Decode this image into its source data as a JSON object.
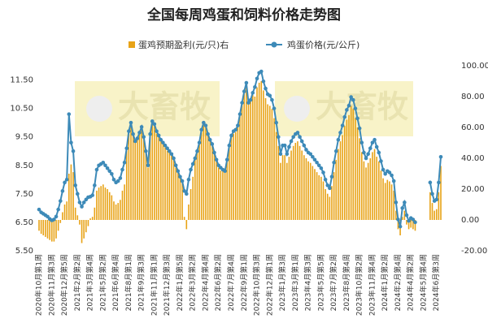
{
  "chart_data": {
    "type": "bar-line",
    "title": "全国每周鸡蛋和饲料价格走势图",
    "watermark": "大畜牧",
    "categories": [
      "2020年10月第1周",
      null,
      null,
      null,
      null,
      null,
      "2020年11月第3周",
      null,
      null,
      null,
      null,
      null,
      "2020年12月第5周",
      null,
      null,
      null,
      null,
      null,
      "2021年2月第2周",
      null,
      null,
      null,
      null,
      null,
      "2021年3月第4周",
      null,
      null,
      null,
      null,
      null,
      "2021年5月第2周",
      null,
      null,
      null,
      null,
      null,
      "2021年6月第4周",
      null,
      null,
      null,
      null,
      null,
      "2021年8月第1周",
      null,
      null,
      null,
      null,
      null,
      "2021年9月第3周",
      null,
      null,
      null,
      null,
      null,
      "2021年11月第1周",
      null,
      null,
      null,
      null,
      null,
      "2021年12月第3周",
      null,
      null,
      null,
      null,
      null,
      "2022年1月第5周",
      null,
      null,
      null,
      null,
      null,
      "2022年3月第2周",
      null,
      null,
      null,
      null,
      null,
      "2022年4月第4周",
      null,
      null,
      null,
      null,
      null,
      "2022年6月第2周",
      null,
      null,
      null,
      null,
      null,
      "2022年7月第4周",
      null,
      null,
      null,
      null,
      null,
      "2022年9月第1周",
      null,
      null,
      null,
      null,
      null,
      "2022年10月第3周",
      null,
      null,
      null,
      null,
      null,
      "2022年12月第1周",
      null,
      null,
      null,
      null,
      null,
      "2023年1月第3周",
      null,
      null,
      null,
      null,
      null,
      "2023年3月第1周",
      null,
      null,
      null,
      null,
      null,
      "2023年4月第3周",
      null,
      null,
      null,
      null,
      null,
      "2023年5月第5周",
      null,
      null,
      null,
      null,
      null,
      "2023年7月第2周",
      null,
      null,
      null,
      null,
      null,
      "2023年8月第4周",
      null,
      null,
      null,
      null,
      null,
      "2023年10月第2周",
      null,
      null,
      null,
      null,
      null,
      "2023年11月第4周",
      null,
      null,
      null,
      null,
      null,
      "2024年1月第2周",
      null,
      null,
      null,
      null,
      null,
      "2024年2月第4周",
      null,
      null,
      null,
      null,
      null,
      "2024年4月第2周",
      null,
      null,
      null,
      null,
      null,
      "2024年5月第4周",
      null,
      null,
      null,
      null,
      null,
      "2024年6月第3周",
      null,
      null
    ],
    "series": [
      {
        "name": "蛋鸡预期盈利(元/只)右",
        "kind": "bar",
        "axis": "y2",
        "color": "#e8a317",
        "values": [
          -7,
          -9,
          -10,
          -11,
          -12,
          -13,
          -14,
          -14,
          -12,
          -7,
          -2,
          5,
          10,
          12,
          30,
          36,
          31,
          8,
          3,
          -3,
          -15,
          -12,
          -8,
          -4,
          1,
          2,
          8,
          19,
          21,
          22,
          23,
          21,
          20,
          18,
          16,
          12,
          10,
          11,
          13,
          19,
          23,
          45,
          56,
          62,
          55,
          50,
          52,
          56,
          59,
          53,
          44,
          34,
          55,
          63,
          61,
          56,
          54,
          51,
          49,
          47,
          45,
          44,
          42,
          39,
          34,
          31,
          27,
          24,
          2,
          -6,
          10,
          20,
          28,
          39,
          44,
          49,
          57,
          62,
          60,
          55,
          51,
          48,
          43,
          38,
          34,
          32,
          32,
          31,
          38,
          47,
          54,
          56,
          57,
          60,
          68,
          75,
          82,
          88,
          75,
          77,
          81,
          80,
          86,
          89,
          90,
          84,
          79,
          75,
          74,
          72,
          66,
          57,
          48,
          37,
          42,
          42,
          37,
          41,
          45,
          48,
          50,
          51,
          48,
          45,
          42,
          40,
          38,
          37,
          35,
          33,
          31,
          29,
          28,
          25,
          20,
          17,
          15,
          22,
          31,
          39,
          46,
          51,
          55,
          61,
          65,
          68,
          74,
          72,
          66,
          60,
          53,
          44,
          38,
          34,
          37,
          40,
          44,
          46,
          41,
          38,
          32,
          27,
          24,
          26,
          25,
          23,
          19,
          6,
          -6,
          -10,
          2,
          6,
          -3,
          -6,
          -5,
          -6,
          -7,
          null,
          null,
          null,
          null,
          null,
          null,
          18,
          11,
          6,
          7,
          18,
          35
        ]
      },
      {
        "name": "鸡蛋价格(元/公斤)",
        "kind": "line",
        "axis": "y",
        "color": "#3d8ab8",
        "values": [
          6.95,
          6.85,
          6.8,
          6.75,
          6.7,
          6.62,
          6.57,
          6.6,
          6.7,
          6.95,
          7.25,
          7.6,
          7.9,
          8.0,
          10.3,
          9.3,
          9.0,
          7.8,
          7.5,
          7.2,
          7.05,
          7.2,
          7.3,
          7.38,
          7.4,
          7.45,
          7.8,
          8.35,
          8.5,
          8.55,
          8.6,
          8.5,
          8.4,
          8.3,
          8.2,
          8.0,
          7.9,
          7.95,
          8.05,
          8.35,
          8.6,
          9.1,
          9.7,
          10.0,
          9.6,
          9.35,
          9.45,
          9.65,
          9.85,
          9.5,
          9.0,
          8.5,
          9.6,
          10.05,
          9.95,
          9.7,
          9.55,
          9.4,
          9.3,
          9.2,
          9.1,
          9.0,
          8.9,
          8.75,
          8.5,
          8.3,
          8.1,
          7.95,
          7.6,
          7.5,
          8.0,
          8.35,
          8.55,
          8.75,
          9.0,
          9.3,
          9.75,
          10.0,
          9.9,
          9.6,
          9.4,
          9.25,
          8.95,
          8.7,
          8.5,
          8.42,
          8.35,
          8.3,
          8.7,
          9.2,
          9.55,
          9.7,
          9.75,
          9.9,
          10.3,
          10.7,
          11.1,
          11.4,
          10.7,
          10.8,
          11.05,
          11.25,
          11.55,
          11.75,
          11.8,
          11.45,
          11.2,
          11.0,
          10.95,
          10.8,
          10.5,
          10.0,
          9.5,
          8.9,
          9.2,
          9.2,
          8.9,
          9.15,
          9.35,
          9.5,
          9.6,
          9.65,
          9.5,
          9.35,
          9.2,
          9.05,
          8.95,
          8.9,
          8.8,
          8.7,
          8.6,
          8.5,
          8.4,
          8.25,
          8.0,
          7.8,
          7.7,
          8.1,
          8.6,
          9.0,
          9.4,
          9.65,
          9.9,
          10.2,
          10.45,
          10.6,
          10.9,
          10.8,
          10.5,
          10.15,
          9.8,
          9.3,
          8.95,
          8.75,
          8.9,
          9.1,
          9.3,
          9.4,
          9.15,
          8.95,
          8.65,
          8.35,
          8.2,
          8.3,
          8.25,
          8.15,
          7.95,
          7.2,
          6.6,
          6.35,
          7.0,
          7.2,
          6.75,
          6.55,
          6.65,
          6.6,
          6.5,
          null,
          null,
          null,
          null,
          null,
          null,
          7.9,
          7.5,
          7.25,
          7.3,
          7.9,
          8.8
        ]
      }
    ],
    "ylim": [
      5.5,
      12
    ],
    "yticks": [
      {
        "value": 5.5,
        "label": "5.50"
      },
      {
        "value": 6.5,
        "label": "6.50"
      },
      {
        "value": 7.5,
        "label": "7.50"
      },
      {
        "value": 8.5,
        "label": "8.50"
      },
      {
        "value": 9.5,
        "label": "9.50"
      },
      {
        "value": 10.5,
        "label": "10.50"
      },
      {
        "value": 11.5,
        "label": "11.50"
      }
    ],
    "y2lim": [
      -20,
      100
    ],
    "y2ticks": [
      {
        "value": -20,
        "label": "-20.00"
      },
      {
        "value": 0,
        "label": "0.00"
      },
      {
        "value": 20,
        "label": "20.00"
      },
      {
        "value": 40,
        "label": "40.00"
      },
      {
        "value": 60,
        "label": "60.00"
      },
      {
        "value": 80,
        "label": "80.00"
      },
      {
        "value": 100,
        "label": "100.00"
      }
    ],
    "legend": "top"
  }
}
